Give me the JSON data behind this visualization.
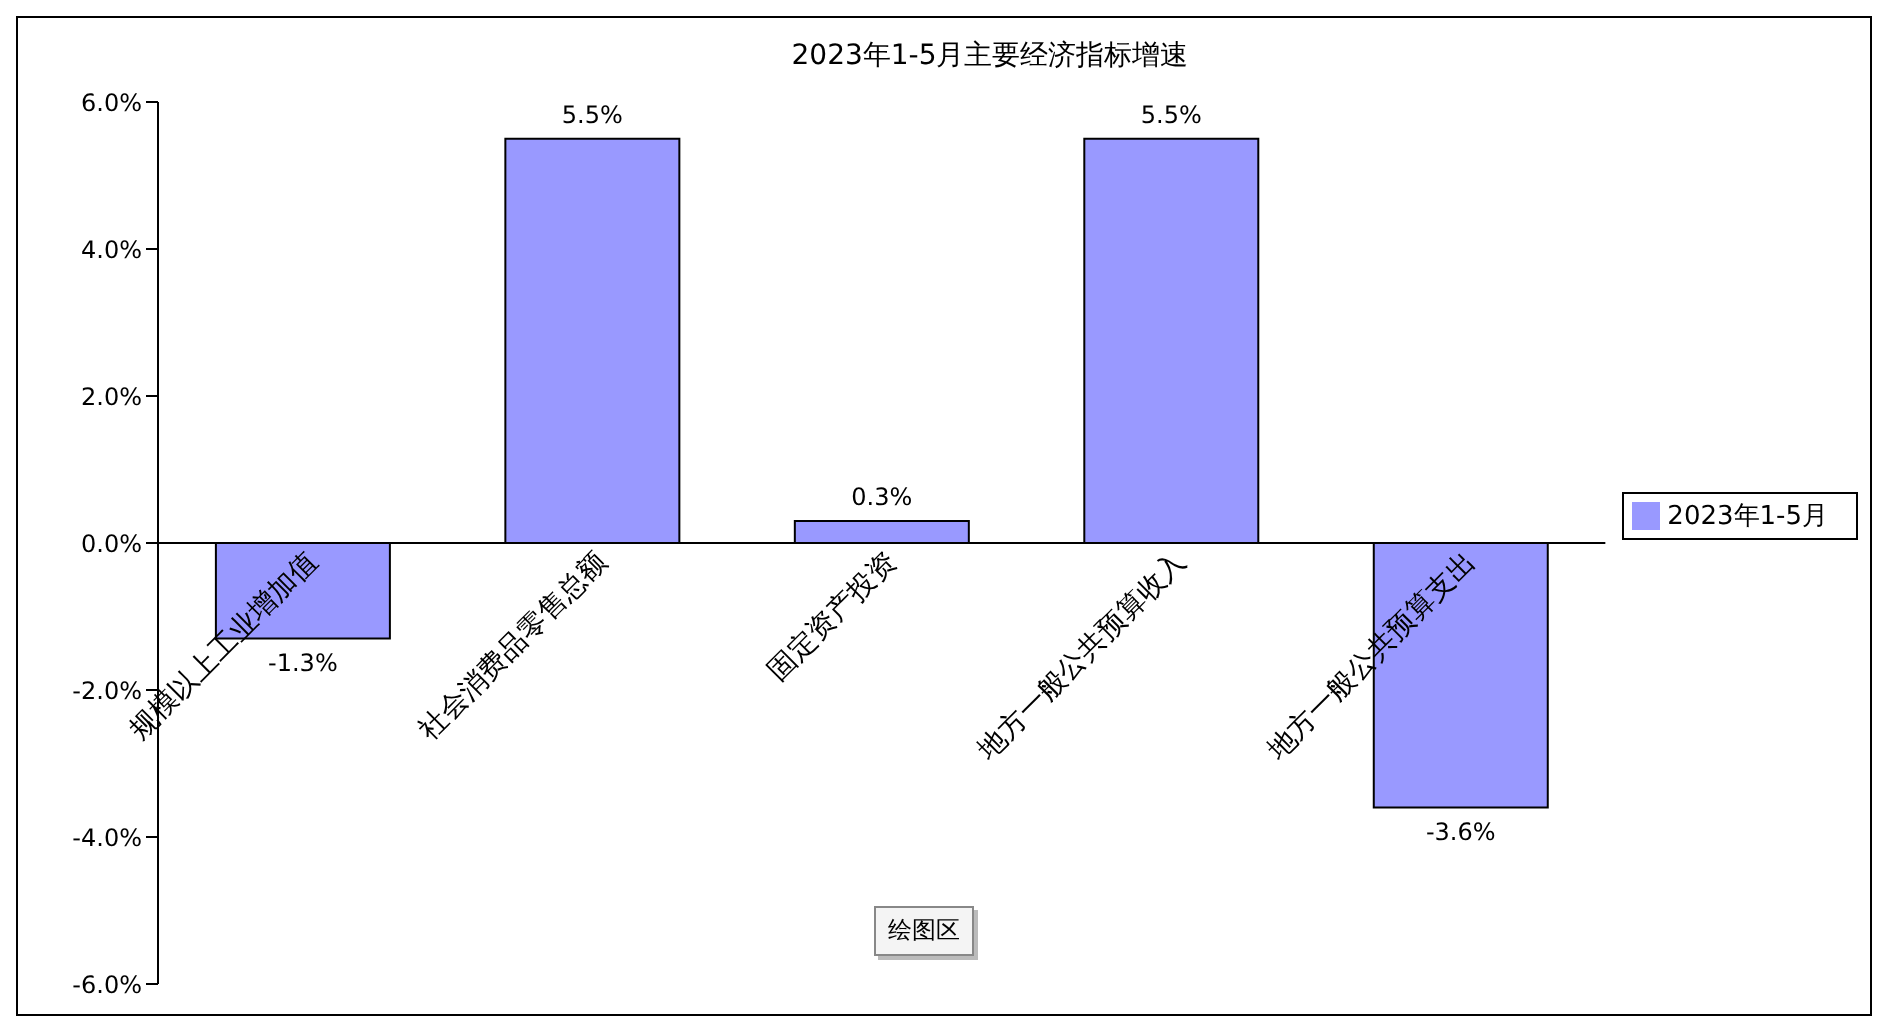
{
  "chart_data": {
    "type": "bar",
    "title": "2023年1-5月主要经济指标增速",
    "categories": [
      "规模以上工业增加值",
      "社会消费品零售总额",
      "固定资产投资",
      "地方一般公共预算收入",
      "地方一般公共预算支出"
    ],
    "series": [
      {
        "name": "2023年1-5月",
        "color": "#9999ff",
        "values": [
          -1.3,
          5.5,
          0.3,
          5.5,
          -3.6
        ],
        "value_labels": [
          "-1.3%",
          "5.5%",
          "0.3%",
          "5.5%",
          "-3.6%"
        ]
      }
    ],
    "ylim": [
      -6,
      6
    ],
    "yticks": [
      {
        "value": -6,
        "label": "-6.0%"
      },
      {
        "value": -4,
        "label": "-4.0%"
      },
      {
        "value": -2,
        "label": "-2.0%"
      },
      {
        "value": 0,
        "label": "0.0%"
      },
      {
        "value": 2,
        "label": "2.0%"
      },
      {
        "value": 4,
        "label": "4.0%"
      },
      {
        "value": 6,
        "label": "6.0%"
      }
    ],
    "legend": "right",
    "annotations": [
      "绘图区"
    ]
  }
}
